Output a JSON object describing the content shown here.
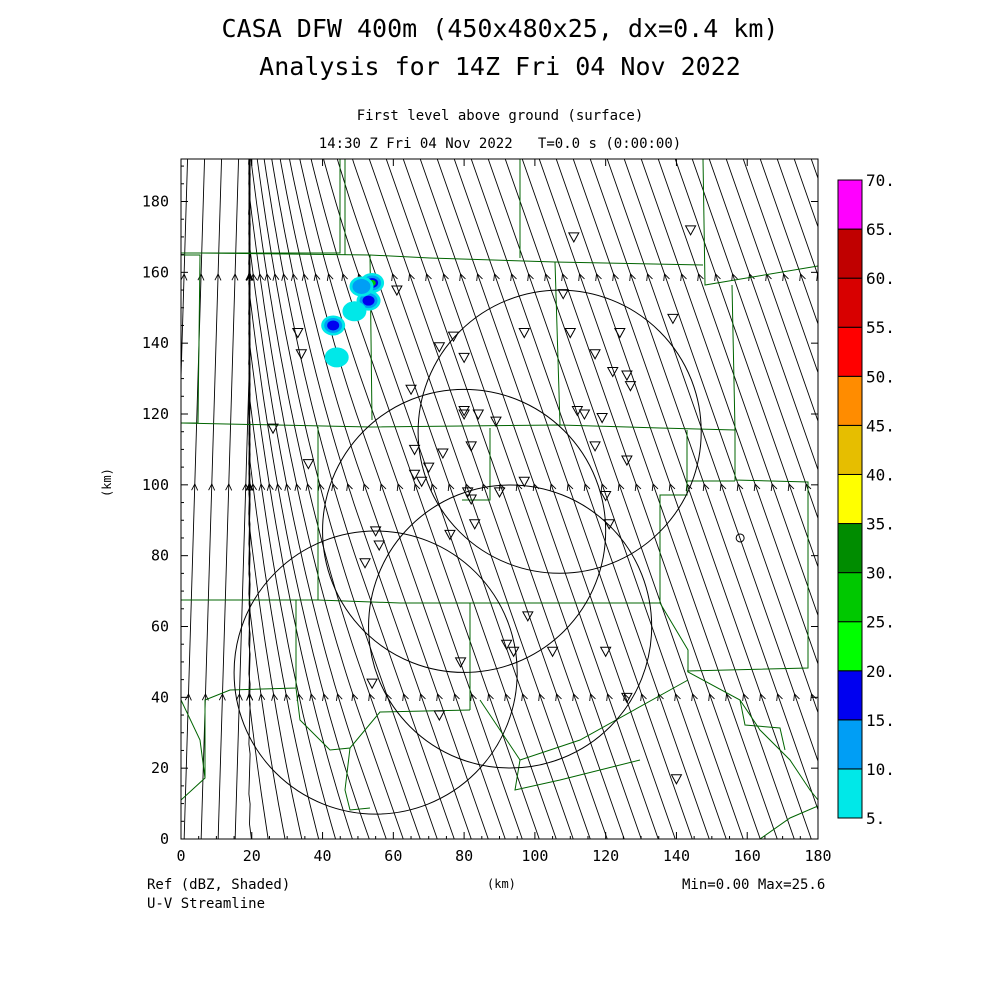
{
  "title_line1": "CASA DFW 400m (450x480x25, dx=0.4 km)",
  "title_line2": "Analysis for 14Z Fri 04 Nov 2022",
  "subtitle_line1": "First level above ground (surface)",
  "subtitle_line2": "14:30 Z Fri 04 Nov 2022   T=0.0 s (0:00:00)",
  "footer_left_line1": "Ref (dBZ, Shaded)",
  "footer_left_line2": "U-V Streamline",
  "footer_center": "(km)",
  "footer_right": "Min=0.00 Max=25.6",
  "y_axis_label": "(km)",
  "colors": {
    "county_lines": "#006400",
    "streamlines": "#000000",
    "frame": "#000000"
  },
  "chart_data": {
    "type": "heatmap",
    "x_ticks": [
      "0",
      "20",
      "40",
      "60",
      "80",
      "100",
      "120",
      "140",
      "160",
      "180"
    ],
    "y_ticks": [
      "0",
      "20",
      "40",
      "60",
      "80",
      "100",
      "120",
      "140",
      "160",
      "180"
    ],
    "xlim": [
      0,
      180
    ],
    "ylim": [
      0,
      192
    ],
    "colorbar": {
      "labels": [
        "5.",
        "10.",
        "15.",
        "20.",
        "25.",
        "30.",
        "35.",
        "40.",
        "45.",
        "50.",
        "55.",
        "60.",
        "65.",
        "70."
      ],
      "colors": [
        "#00e8e8",
        "#009ef5",
        "#0000f0",
        "#00ff00",
        "#00c800",
        "#008c00",
        "#ffff00",
        "#e6be00",
        "#ff8c00",
        "#ff0000",
        "#d80000",
        "#c00000",
        "#ff00ff"
      ]
    },
    "radar_rings": [
      {
        "center_x": 55,
        "center_y": 47,
        "radius_km": 40
      },
      {
        "center_x": 80,
        "center_y": 87,
        "radius_km": 40
      },
      {
        "center_x": 93,
        "center_y": 60,
        "radius_km": 40
      },
      {
        "center_x": 107,
        "center_y": 115,
        "radius_km": 40
      }
    ],
    "reflectivity_echoes": [
      {
        "x": 43,
        "y": 145,
        "dbz": 18
      },
      {
        "x": 54,
        "y": 157,
        "dbz": 25.6
      },
      {
        "x": 53,
        "y": 152,
        "dbz": 17
      },
      {
        "x": 51,
        "y": 156,
        "dbz": 10
      },
      {
        "x": 49,
        "y": 149,
        "dbz": 9
      },
      {
        "x": 44,
        "y": 136,
        "dbz": 8
      }
    ],
    "station_marker": {
      "x": 158,
      "y": 85,
      "symbol": "o"
    },
    "triangle_markers": [
      [
        111,
        170
      ],
      [
        144,
        172
      ],
      [
        61,
        155
      ],
      [
        33,
        143
      ],
      [
        34,
        137
      ],
      [
        77,
        142
      ],
      [
        97,
        143
      ],
      [
        110,
        143
      ],
      [
        124,
        143
      ],
      [
        139,
        147
      ],
      [
        73,
        139
      ],
      [
        80,
        136
      ],
      [
        117,
        137
      ],
      [
        122,
        132
      ],
      [
        126,
        131
      ],
      [
        127,
        128
      ],
      [
        108,
        154
      ],
      [
        65,
        127
      ],
      [
        80,
        121
      ],
      [
        80,
        120
      ],
      [
        84,
        120
      ],
      [
        89,
        118
      ],
      [
        112,
        121
      ],
      [
        114,
        120
      ],
      [
        119,
        119
      ],
      [
        82,
        111
      ],
      [
        66,
        110
      ],
      [
        74,
        109
      ],
      [
        70,
        105
      ],
      [
        66,
        103
      ],
      [
        68,
        101
      ],
      [
        117,
        111
      ],
      [
        126,
        107
      ],
      [
        97,
        101
      ],
      [
        90,
        98
      ],
      [
        81,
        98
      ],
      [
        82,
        96
      ],
      [
        120,
        97
      ],
      [
        121,
        89
      ],
      [
        83,
        89
      ],
      [
        76,
        86
      ],
      [
        55,
        87
      ],
      [
        56,
        83
      ],
      [
        52,
        78
      ],
      [
        98,
        63
      ],
      [
        92,
        55
      ],
      [
        94,
        53
      ],
      [
        105,
        53
      ],
      [
        120,
        53
      ],
      [
        79,
        50
      ],
      [
        54,
        44
      ],
      [
        126,
        40
      ],
      [
        73,
        35
      ],
      [
        140,
        17
      ],
      [
        26,
        116
      ],
      [
        36,
        106
      ]
    ]
  }
}
